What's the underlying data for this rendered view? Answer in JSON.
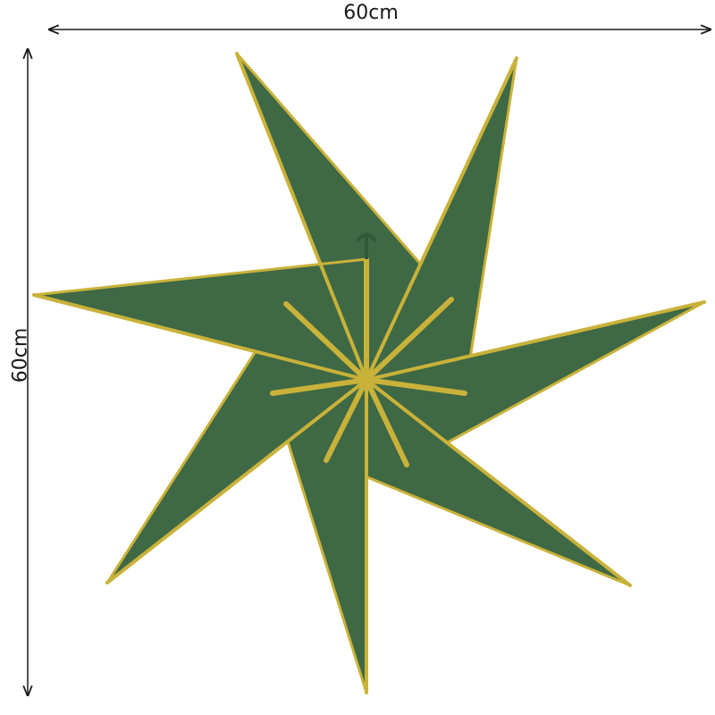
{
  "dimensions": {
    "width_label": "60cm",
    "height_label": "60cm"
  },
  "colors": {
    "background": "#ffffff",
    "star_green_light": "#4f7a52",
    "star_green_dark": "#3f6844",
    "glitter_gold": "#c9b23a",
    "arrow": "#1a1a1a"
  },
  "product": {
    "type": "seven-point paper star lantern",
    "hanger_icon": "hook-icon"
  }
}
